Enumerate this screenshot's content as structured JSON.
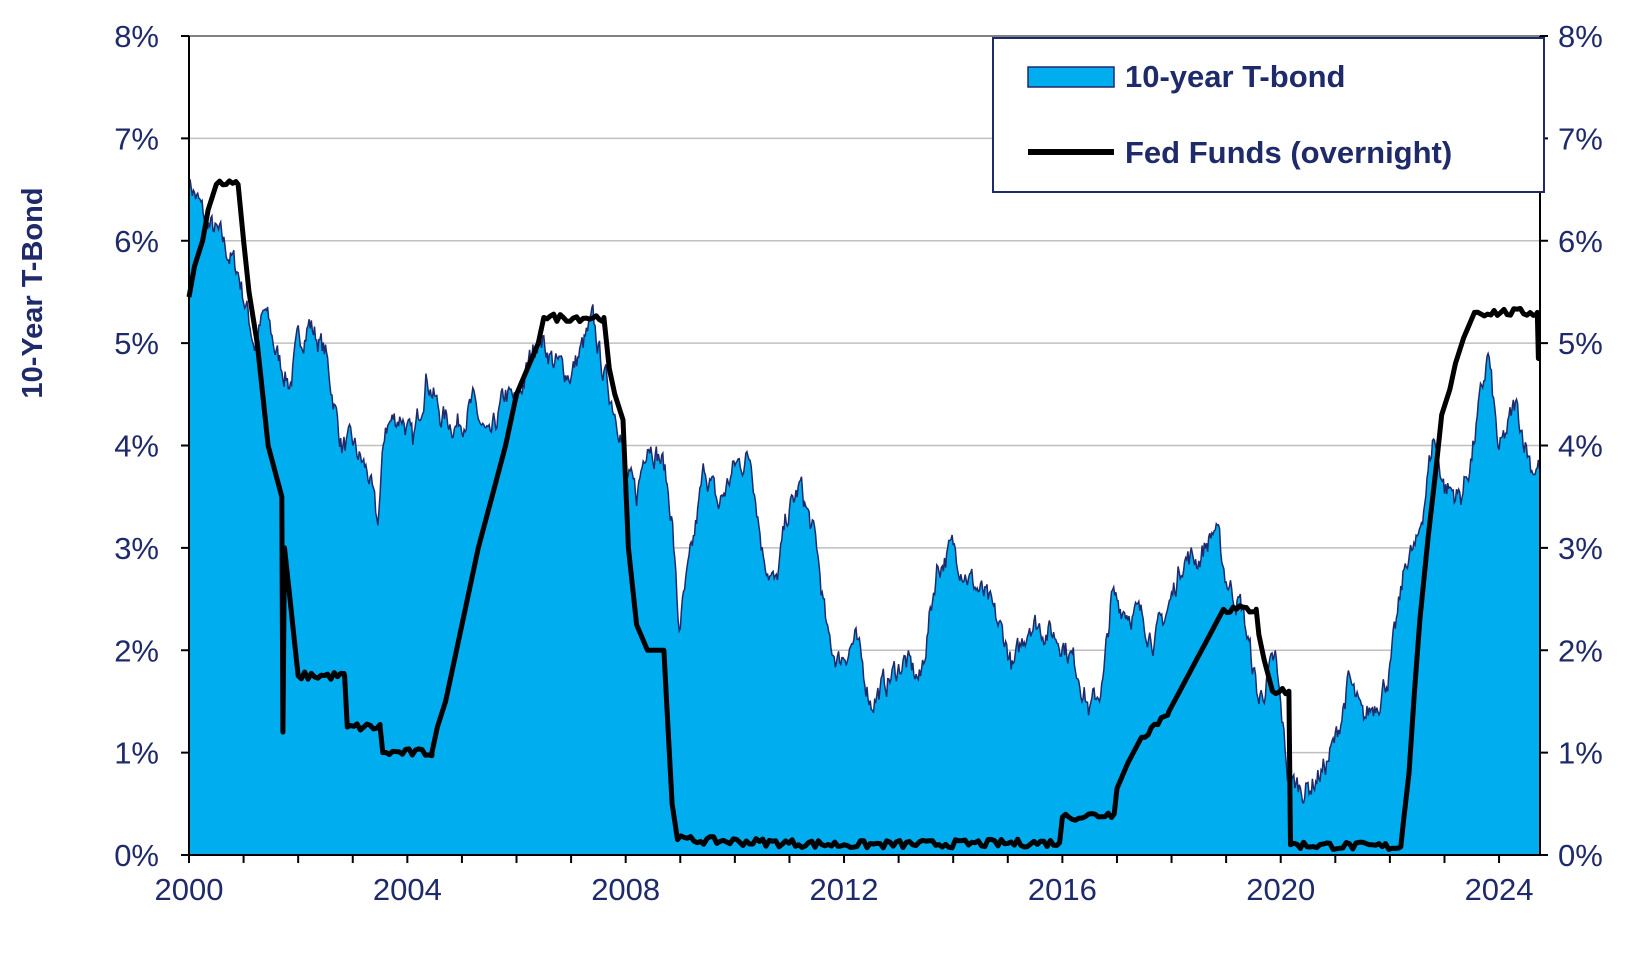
{
  "chart_data": {
    "type": "area",
    "title": "",
    "ylabel": "10-Year T-Bond",
    "xlim": [
      2000,
      2024.75
    ],
    "ylim": [
      0,
      8
    ],
    "x_ticks": [
      "2000",
      "2004",
      "2008",
      "2012",
      "2016",
      "2020",
      "2024"
    ],
    "y_ticks_left": [
      "0%",
      "1%",
      "2%",
      "3%",
      "4%",
      "5%",
      "6%",
      "7%",
      "8%"
    ],
    "y_ticks_right": [
      "0%",
      "1%",
      "2%",
      "3%",
      "4%",
      "5%",
      "6%",
      "7%",
      "8%"
    ],
    "grid": true,
    "legend_position": "top-right",
    "colors": {
      "area": "#00adef",
      "area_edge": "#1f2a6b",
      "line": "#000000",
      "text": "#1f2a6b",
      "grid": "#bfbfbf"
    },
    "series": [
      {
        "name": "10-year T-bond",
        "style": "area",
        "points": [
          [
            2000.0,
            6.6
          ],
          [
            2000.3,
            6.2
          ],
          [
            2000.6,
            6.0
          ],
          [
            2000.9,
            5.7
          ],
          [
            2001.2,
            5.0
          ],
          [
            2001.4,
            5.3
          ],
          [
            2001.6,
            4.9
          ],
          [
            2001.85,
            4.6
          ],
          [
            2002.0,
            5.0
          ],
          [
            2002.2,
            5.2
          ],
          [
            2002.5,
            4.9
          ],
          [
            2002.8,
            4.0
          ],
          [
            2003.0,
            4.0
          ],
          [
            2003.3,
            3.7
          ],
          [
            2003.45,
            3.2
          ],
          [
            2003.6,
            4.2
          ],
          [
            2003.9,
            4.3
          ],
          [
            2004.1,
            4.0
          ],
          [
            2004.35,
            4.7
          ],
          [
            2004.6,
            4.3
          ],
          [
            2004.9,
            4.2
          ],
          [
            2005.2,
            4.4
          ],
          [
            2005.5,
            4.0
          ],
          [
            2005.8,
            4.5
          ],
          [
            2006.0,
            4.4
          ],
          [
            2006.4,
            5.1
          ],
          [
            2006.7,
            4.8
          ],
          [
            2007.0,
            4.7
          ],
          [
            2007.4,
            5.2
          ],
          [
            2007.6,
            4.7
          ],
          [
            2007.9,
            4.2
          ],
          [
            2008.0,
            3.7
          ],
          [
            2008.2,
            3.5
          ],
          [
            2008.4,
            4.1
          ],
          [
            2008.7,
            3.8
          ],
          [
            2008.85,
            3.3
          ],
          [
            2008.97,
            2.2
          ],
          [
            2009.2,
            2.9
          ],
          [
            2009.45,
            3.8
          ],
          [
            2009.7,
            3.4
          ],
          [
            2010.0,
            3.8
          ],
          [
            2010.3,
            3.9
          ],
          [
            2010.5,
            3.0
          ],
          [
            2010.75,
            2.6
          ],
          [
            2010.95,
            3.3
          ],
          [
            2011.2,
            3.6
          ],
          [
            2011.5,
            3.0
          ],
          [
            2011.7,
            2.1
          ],
          [
            2011.9,
            1.9
          ],
          [
            2012.2,
            2.1
          ],
          [
            2012.5,
            1.5
          ],
          [
            2012.8,
            1.7
          ],
          [
            2013.1,
            1.9
          ],
          [
            2013.4,
            1.7
          ],
          [
            2013.7,
            2.8
          ],
          [
            2014.0,
            3.0
          ],
          [
            2014.3,
            2.7
          ],
          [
            2014.6,
            2.5
          ],
          [
            2014.95,
            2.1
          ],
          [
            2015.1,
            1.8
          ],
          [
            2015.4,
            2.3
          ],
          [
            2015.7,
            2.2
          ],
          [
            2016.0,
            2.1
          ],
          [
            2016.3,
            1.8
          ],
          [
            2016.5,
            1.4
          ],
          [
            2016.75,
            1.7
          ],
          [
            2016.9,
            2.5
          ],
          [
            2017.2,
            2.4
          ],
          [
            2017.5,
            2.3
          ],
          [
            2017.7,
            2.1
          ],
          [
            2018.0,
            2.5
          ],
          [
            2018.2,
            2.9
          ],
          [
            2018.5,
            2.9
          ],
          [
            2018.8,
            3.2
          ],
          [
            2019.0,
            2.7
          ],
          [
            2019.3,
            2.4
          ],
          [
            2019.6,
            1.5
          ],
          [
            2019.9,
            1.9
          ],
          [
            2020.15,
            0.7
          ],
          [
            2020.5,
            0.65
          ],
          [
            2020.8,
            0.85
          ],
          [
            2021.0,
            1.1
          ],
          [
            2021.25,
            1.7
          ],
          [
            2021.5,
            1.3
          ],
          [
            2021.8,
            1.55
          ],
          [
            2022.0,
            1.8
          ],
          [
            2022.3,
            2.9
          ],
          [
            2022.5,
            3.0
          ],
          [
            2022.8,
            4.1
          ],
          [
            2023.0,
            3.6
          ],
          [
            2023.3,
            3.5
          ],
          [
            2023.5,
            3.9
          ],
          [
            2023.8,
            4.9
          ],
          [
            2024.0,
            3.9
          ],
          [
            2024.3,
            4.4
          ],
          [
            2024.6,
            3.8
          ],
          [
            2024.75,
            3.8
          ]
        ]
      },
      {
        "name": "Fed Funds (overnight)",
        "style": "line",
        "points": [
          [
            2000.0,
            5.45
          ],
          [
            2000.1,
            5.75
          ],
          [
            2000.25,
            6.0
          ],
          [
            2000.35,
            6.3
          ],
          [
            2000.5,
            6.55
          ],
          [
            2000.9,
            6.55
          ],
          [
            2001.0,
            6.0
          ],
          [
            2001.1,
            5.5
          ],
          [
            2001.25,
            5.0
          ],
          [
            2001.35,
            4.5
          ],
          [
            2001.45,
            4.0
          ],
          [
            2001.6,
            3.7
          ],
          [
            2001.7,
            3.5
          ],
          [
            2001.72,
            1.2
          ],
          [
            2001.75,
            3.0
          ],
          [
            2001.85,
            2.5
          ],
          [
            2001.95,
            2.0
          ],
          [
            2002.0,
            1.75
          ],
          [
            2002.85,
            1.75
          ],
          [
            2002.9,
            1.25
          ],
          [
            2003.5,
            1.25
          ],
          [
            2003.55,
            1.0
          ],
          [
            2004.45,
            1.0
          ],
          [
            2004.55,
            1.25
          ],
          [
            2004.7,
            1.5
          ],
          [
            2004.9,
            2.0
          ],
          [
            2005.1,
            2.5
          ],
          [
            2005.3,
            3.0
          ],
          [
            2005.55,
            3.5
          ],
          [
            2005.8,
            4.0
          ],
          [
            2006.0,
            4.5
          ],
          [
            2006.2,
            4.75
          ],
          [
            2006.4,
            5.0
          ],
          [
            2006.5,
            5.25
          ],
          [
            2007.6,
            5.25
          ],
          [
            2007.7,
            4.75
          ],
          [
            2007.8,
            4.5
          ],
          [
            2007.95,
            4.25
          ],
          [
            2008.05,
            3.0
          ],
          [
            2008.2,
            2.25
          ],
          [
            2008.4,
            2.0
          ],
          [
            2008.7,
            2.0
          ],
          [
            2008.75,
            1.5
          ],
          [
            2008.85,
            0.5
          ],
          [
            2008.95,
            0.15
          ],
          [
            2012.0,
            0.1
          ],
          [
            2015.95,
            0.12
          ],
          [
            2016.0,
            0.37
          ],
          [
            2016.95,
            0.4
          ],
          [
            2017.0,
            0.65
          ],
          [
            2017.2,
            0.9
          ],
          [
            2017.45,
            1.15
          ],
          [
            2017.95,
            1.4
          ],
          [
            2018.2,
            1.65
          ],
          [
            2018.45,
            1.9
          ],
          [
            2018.7,
            2.15
          ],
          [
            2018.95,
            2.4
          ],
          [
            2019.55,
            2.4
          ],
          [
            2019.6,
            2.15
          ],
          [
            2019.7,
            1.9
          ],
          [
            2019.85,
            1.6
          ],
          [
            2020.15,
            1.6
          ],
          [
            2020.18,
            0.1
          ],
          [
            2022.2,
            0.08
          ],
          [
            2022.25,
            0.33
          ],
          [
            2022.35,
            0.8
          ],
          [
            2022.45,
            1.6
          ],
          [
            2022.55,
            2.3
          ],
          [
            2022.7,
            3.1
          ],
          [
            2022.85,
            3.8
          ],
          [
            2022.95,
            4.3
          ],
          [
            2023.1,
            4.55
          ],
          [
            2023.2,
            4.8
          ],
          [
            2023.35,
            5.05
          ],
          [
            2023.55,
            5.3
          ],
          [
            2024.7,
            5.3
          ],
          [
            2024.72,
            4.85
          ],
          [
            2024.75,
            4.85
          ]
        ]
      }
    ]
  }
}
